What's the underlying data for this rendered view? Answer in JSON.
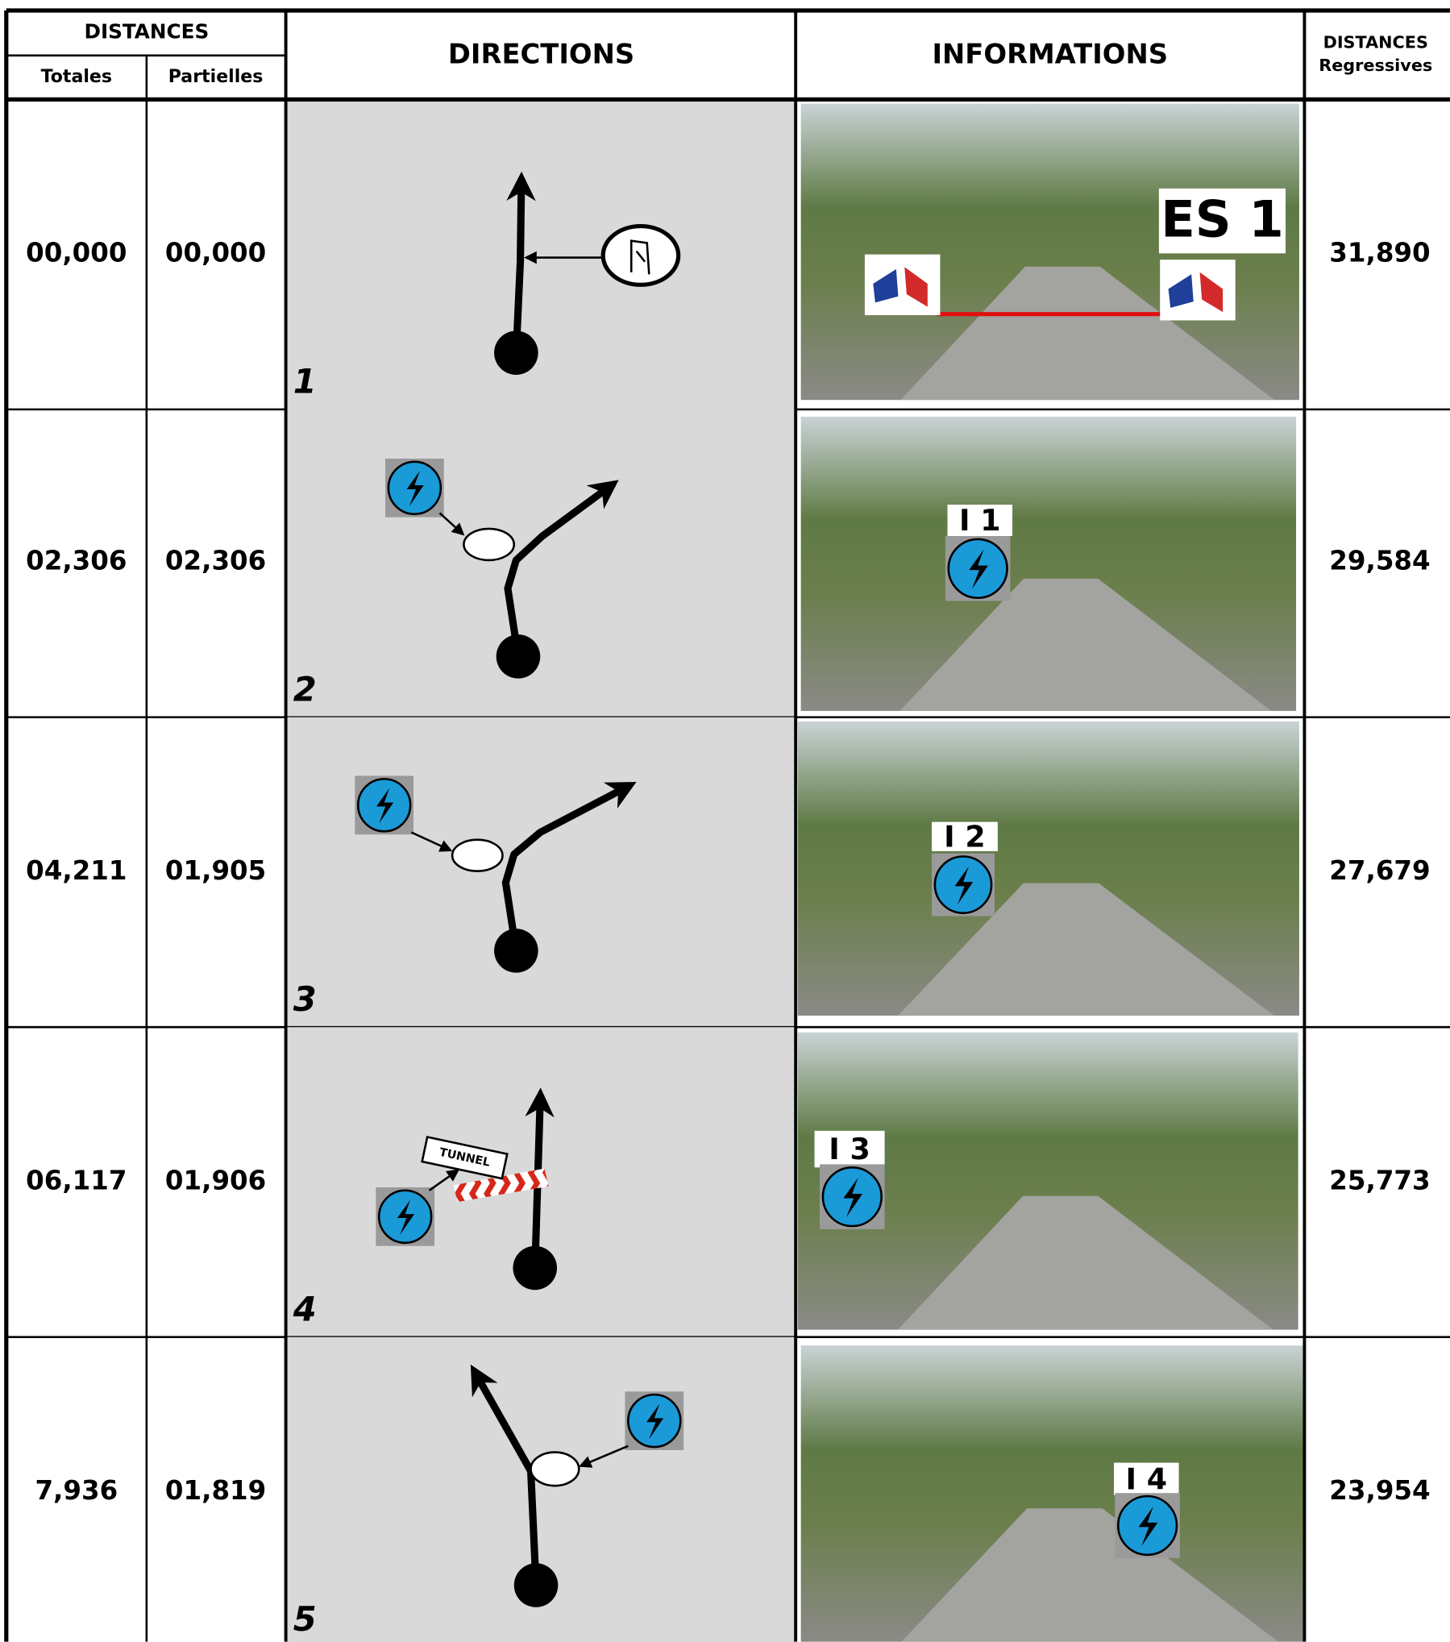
{
  "header": {
    "distances": "DISTANCES",
    "totales": "Totales",
    "partielles": "Partielles",
    "directions": "DIRECTIONS",
    "informations": "INFORMATIONS",
    "regressives_title": "DISTANCES",
    "regressives_sub": "Regressives"
  },
  "rows": [
    {
      "totale": "00,000",
      "partielle": "00,000",
      "number": "1",
      "info_label": "ES 1",
      "regressive": "31,890"
    },
    {
      "totale": "02,306",
      "partielle": "02,306",
      "number": "2",
      "info_label": "I 1",
      "regressive": "29,584"
    },
    {
      "totale": "04,211",
      "partielle": "01,905",
      "number": "3",
      "info_label": "I 2",
      "regressive": "27,679"
    },
    {
      "totale": "06,117",
      "partielle": "01,906",
      "number": "4",
      "info_label": "I 3",
      "regressive": "25,773",
      "tunnel_label": "TUNNEL"
    },
    {
      "totale": "7,936",
      "partielle": "01,819",
      "number": "5",
      "info_label": "I 4",
      "regressive": "23,954"
    }
  ]
}
